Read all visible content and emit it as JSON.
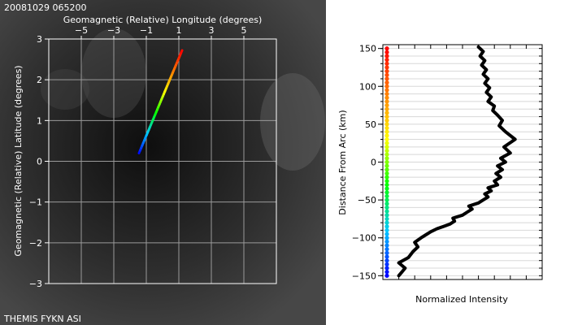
{
  "header": {
    "timestamp": "20081029 065200"
  },
  "footer": {
    "instrument": "THEMIS FYKN ASI"
  },
  "chart_data": [
    {
      "type": "line",
      "title": "",
      "xlabel": "Geomagnetic (Relative) Longitude (degrees)",
      "ylabel": "Geomagnetic (Relative) Latitude (degrees)",
      "xlim": [
        -7,
        7
      ],
      "ylim": [
        -3,
        3
      ],
      "xticks": [
        -5,
        -3,
        -1,
        1,
        3,
        5
      ],
      "xtick_labels": [
        "−5",
        "−3",
        "−1",
        "1",
        "3",
        "5"
      ],
      "yticks": [
        -3,
        -2,
        -1,
        0,
        1,
        2,
        3
      ],
      "ytick_labels": [
        "−3",
        "−2",
        "−1",
        "0",
        "1",
        "2",
        "3"
      ],
      "grid": true,
      "colors": [
        "#0000ff",
        "#00c8ff",
        "#00ff00",
        "#ffff00",
        "#ff8000",
        "#ff0000"
      ],
      "x": [
        -1.45,
        1.2
      ],
      "y": [
        0.2,
        2.72
      ]
    },
    {
      "type": "line",
      "title": "",
      "xlabel": "Normalized Intensity",
      "ylabel": "Distance From Arc (km)",
      "ylim": [
        -155,
        155
      ],
      "yticks": [
        -150,
        -100,
        -50,
        0,
        50,
        100,
        150
      ],
      "ytick_labels": [
        "−150",
        "−100",
        "−50",
        "0",
        "50",
        "100",
        "150"
      ],
      "grid": true,
      "series_color": "#000000",
      "colorbar_colors": [
        "#0000ff",
        "#00c8ff",
        "#00ff00",
        "#ffff00",
        "#ff8000",
        "#ff0000"
      ],
      "x": [
        0.1,
        0.12,
        0.14,
        0.1,
        0.16,
        0.19,
        0.22,
        0.2,
        0.24,
        0.27,
        0.3,
        0.34,
        0.38,
        0.42,
        0.45,
        0.44,
        0.5,
        0.53,
        0.56,
        0.54,
        0.6,
        0.63,
        0.66,
        0.64,
        0.68,
        0.66,
        0.72,
        0.7,
        0.74,
        0.71,
        0.75,
        0.72,
        0.77,
        0.74,
        0.8,
        0.76,
        0.83,
        0.77,
        0.73,
        0.75,
        0.72,
        0.69,
        0.7,
        0.66,
        0.68,
        0.65,
        0.67,
        0.64,
        0.66,
        0.63,
        0.65,
        0.62,
        0.64,
        0.61,
        0.63,
        0.6
      ],
      "y": [
        -150,
        -145,
        -140,
        -133,
        -126,
        -118,
        -112,
        -106,
        -100,
        -96,
        -92,
        -88,
        -85,
        -82,
        -78,
        -74,
        -70,
        -66,
        -62,
        -58,
        -54,
        -50,
        -46,
        -42,
        -38,
        -34,
        -30,
        -25,
        -20,
        -15,
        -10,
        -5,
        0,
        5,
        12,
        20,
        30,
        40,
        48,
        55,
        62,
        68,
        74,
        80,
        86,
        92,
        98,
        104,
        110,
        116,
        122,
        128,
        134,
        140,
        146,
        152
      ]
    }
  ]
}
